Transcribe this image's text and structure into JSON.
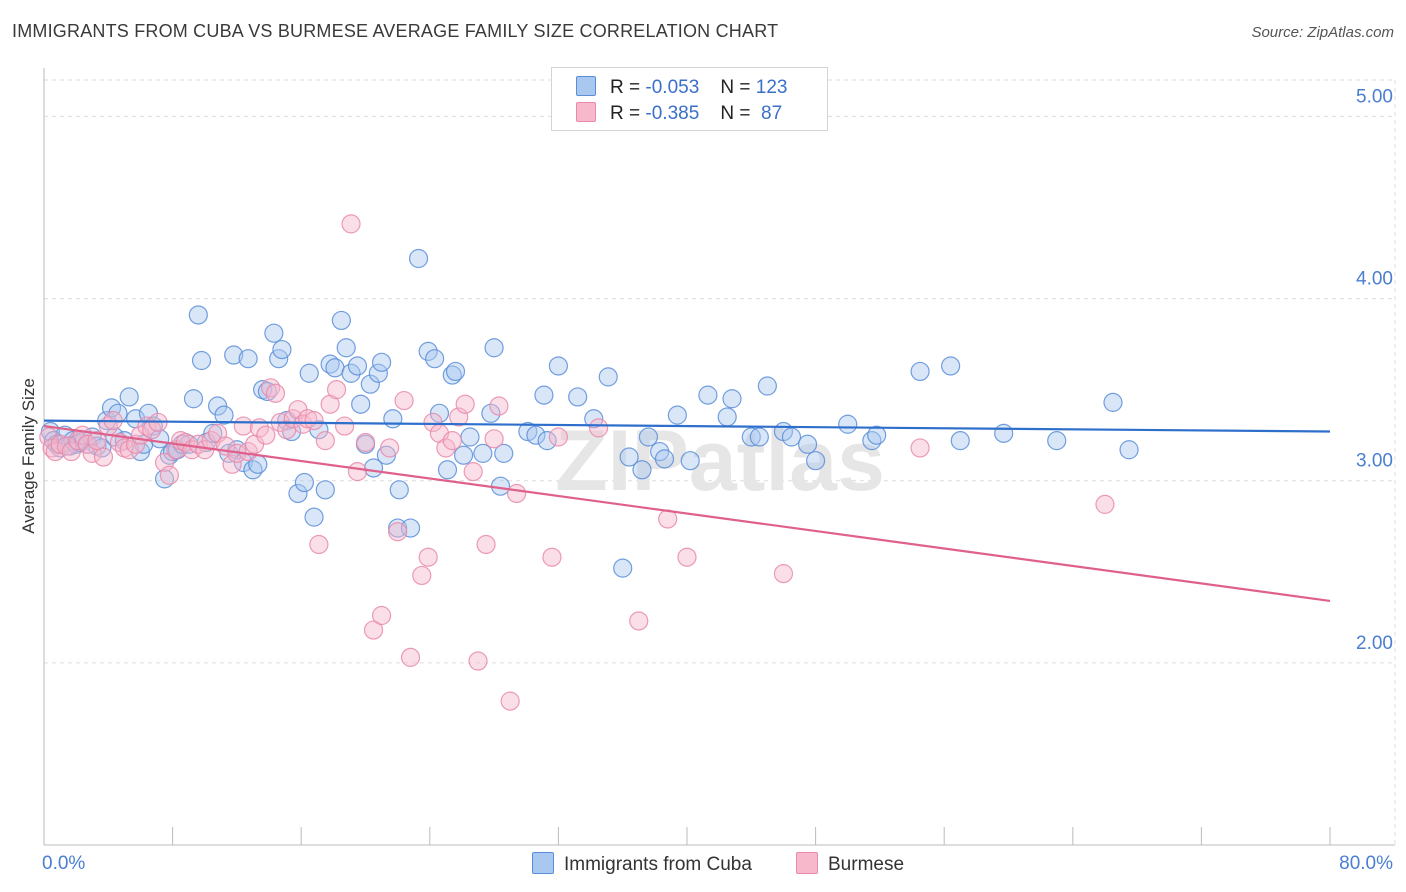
{
  "title": "IMMIGRANTS FROM CUBA VS BURMESE AVERAGE FAMILY SIZE CORRELATION CHART",
  "source": "Source: ZipAtlas.com",
  "watermark": "ZIPatlas",
  "legend_top": [
    {
      "r_label": "R =",
      "r_value": "-0.053",
      "n_label": "N =",
      "n_value": "123"
    },
    {
      "r_label": "R =",
      "r_value": "-0.385",
      "n_label": "N =",
      "n_value": " 87"
    }
  ],
  "legend_bottom": [
    "Immigrants from Cuba",
    "Burmese"
  ],
  "colors": {
    "cuba_fill": "#a8c8f0",
    "cuba_stroke": "#5b8ed8",
    "cuba_line": "#2f6fcc",
    "burmese_fill": "#f7b8cc",
    "burmese_stroke": "#e88aaa",
    "burmese_line": "#e0608c",
    "tick_text": "#4a7fd0"
  },
  "chart_data": {
    "type": "scatter",
    "ylabel": "Average Family Size",
    "xlabel": "",
    "xlim": [
      0,
      80
    ],
    "ylim": [
      1.0,
      5.2
    ],
    "x_tick_labels": [
      "0.0%",
      "80.0%"
    ],
    "y_ticks": [
      2.0,
      3.0,
      4.0,
      5.0
    ],
    "y_tick_labels": [
      "2.00",
      "3.00",
      "4.00",
      "5.00"
    ],
    "grid": true,
    "series": [
      {
        "name": "Immigrants from Cuba",
        "trend": {
          "x": [
            0,
            80
          ],
          "y": [
            3.33,
            3.27
          ]
        },
        "points": [
          [
            0.4,
            3.27
          ],
          [
            0.6,
            3.22
          ],
          [
            0.8,
            3.2
          ],
          [
            1,
            3.18
          ],
          [
            1.3,
            3.25
          ],
          [
            1.6,
            3.19
          ],
          [
            1.8,
            3.22
          ],
          [
            2,
            3.2
          ],
          [
            2.2,
            3.21
          ],
          [
            2.5,
            3.22
          ],
          [
            2.7,
            3.2
          ],
          [
            3,
            3.24
          ],
          [
            3.3,
            3.19
          ],
          [
            3.6,
            3.18
          ],
          [
            3.9,
            3.33
          ],
          [
            4.2,
            3.4
          ],
          [
            4.4,
            3.24
          ],
          [
            4.6,
            3.37
          ],
          [
            5,
            3.22
          ],
          [
            5.3,
            3.46
          ],
          [
            5.7,
            3.34
          ],
          [
            6,
            3.16
          ],
          [
            6.2,
            3.2
          ],
          [
            6.5,
            3.37
          ],
          [
            6.8,
            3.3
          ],
          [
            7.2,
            3.23
          ],
          [
            7.5,
            3.01
          ],
          [
            7.8,
            3.14
          ],
          [
            8,
            3.16
          ],
          [
            8.3,
            3.17
          ],
          [
            8.6,
            3.2
          ],
          [
            9,
            3.2
          ],
          [
            9.3,
            3.45
          ],
          [
            9.6,
            3.91
          ],
          [
            9.8,
            3.66
          ],
          [
            10.1,
            3.21
          ],
          [
            10.5,
            3.26
          ],
          [
            10.8,
            3.41
          ],
          [
            11.2,
            3.36
          ],
          [
            11.5,
            3.15
          ],
          [
            11.8,
            3.69
          ],
          [
            12,
            3.17
          ],
          [
            12.4,
            3.1
          ],
          [
            12.7,
            3.67
          ],
          [
            13,
            3.06
          ],
          [
            13.3,
            3.09
          ],
          [
            13.6,
            3.5
          ],
          [
            13.9,
            3.49
          ],
          [
            14.3,
            3.81
          ],
          [
            14.6,
            3.67
          ],
          [
            14.8,
            3.72
          ],
          [
            15.1,
            3.33
          ],
          [
            15.4,
            3.27
          ],
          [
            15.8,
            2.93
          ],
          [
            16.2,
            2.99
          ],
          [
            16.5,
            3.59
          ],
          [
            16.8,
            2.8
          ],
          [
            17.1,
            3.28
          ],
          [
            17.5,
            2.95
          ],
          [
            17.8,
            3.64
          ],
          [
            18.1,
            3.62
          ],
          [
            18.5,
            3.88
          ],
          [
            18.8,
            3.73
          ],
          [
            19.1,
            3.59
          ],
          [
            19.5,
            3.63
          ],
          [
            19.7,
            3.42
          ],
          [
            20,
            3.2
          ],
          [
            20.3,
            3.53
          ],
          [
            20.5,
            3.07
          ],
          [
            20.8,
            3.59
          ],
          [
            21,
            3.65
          ],
          [
            21.3,
            3.14
          ],
          [
            21.7,
            3.34
          ],
          [
            22.1,
            2.95
          ],
          [
            22,
            2.74
          ],
          [
            22.8,
            2.74
          ],
          [
            23.3,
            4.22
          ],
          [
            23.9,
            3.71
          ],
          [
            24.3,
            3.67
          ],
          [
            24.6,
            3.37
          ],
          [
            25.1,
            3.06
          ],
          [
            25.4,
            3.58
          ],
          [
            25.6,
            3.6
          ],
          [
            26.1,
            3.14
          ],
          [
            26.5,
            3.24
          ],
          [
            27.3,
            3.15
          ],
          [
            27.8,
            3.37
          ],
          [
            28,
            3.73
          ],
          [
            28.4,
            2.97
          ],
          [
            28.6,
            3.15
          ],
          [
            30.1,
            3.27
          ],
          [
            30.6,
            3.25
          ],
          [
            31.1,
            3.47
          ],
          [
            31.3,
            3.22
          ],
          [
            32,
            3.63
          ],
          [
            33.2,
            3.46
          ],
          [
            34.2,
            3.34
          ],
          [
            35.1,
            3.57
          ],
          [
            36,
            2.52
          ],
          [
            36.4,
            3.13
          ],
          [
            37.2,
            3.06
          ],
          [
            37.6,
            3.24
          ],
          [
            38.3,
            3.16
          ],
          [
            38.6,
            3.12
          ],
          [
            39.4,
            3.36
          ],
          [
            40.2,
            3.11
          ],
          [
            41.3,
            3.47
          ],
          [
            42.5,
            3.35
          ],
          [
            42.8,
            3.45
          ],
          [
            44,
            3.24
          ],
          [
            44.5,
            3.24
          ],
          [
            45,
            3.52
          ],
          [
            46,
            3.27
          ],
          [
            46.5,
            3.24
          ],
          [
            47.5,
            3.2
          ],
          [
            48,
            3.11
          ],
          [
            50,
            3.31
          ],
          [
            51.5,
            3.22
          ],
          [
            51.8,
            3.25
          ],
          [
            54.5,
            3.6
          ],
          [
            56.4,
            3.63
          ],
          [
            57,
            3.22
          ],
          [
            59.7,
            3.26
          ],
          [
            63,
            3.22
          ],
          [
            66.5,
            3.43
          ],
          [
            67.5,
            3.17
          ]
        ]
      },
      {
        "name": "Burmese",
        "trend": {
          "x": [
            0,
            80
          ],
          "y": [
            3.3,
            2.34
          ]
        },
        "points": [
          [
            0.3,
            3.24
          ],
          [
            0.5,
            3.18
          ],
          [
            0.7,
            3.16
          ],
          [
            1,
            3.2
          ],
          [
            1.4,
            3.19
          ],
          [
            1.7,
            3.16
          ],
          [
            2.1,
            3.22
          ],
          [
            2.4,
            3.25
          ],
          [
            2.7,
            3.2
          ],
          [
            3,
            3.15
          ],
          [
            3.3,
            3.22
          ],
          [
            3.7,
            3.13
          ],
          [
            4,
            3.3
          ],
          [
            4.3,
            3.33
          ],
          [
            4.7,
            3.21
          ],
          [
            5,
            3.18
          ],
          [
            5.3,
            3.17
          ],
          [
            5.7,
            3.2
          ],
          [
            6,
            3.25
          ],
          [
            6.4,
            3.3
          ],
          [
            6.7,
            3.28
          ],
          [
            7.1,
            3.32
          ],
          [
            7.5,
            3.1
          ],
          [
            7.8,
            3.03
          ],
          [
            8.2,
            3.17
          ],
          [
            8.5,
            3.22
          ],
          [
            8.8,
            3.21
          ],
          [
            9.2,
            3.17
          ],
          [
            9.6,
            3.2
          ],
          [
            10,
            3.17
          ],
          [
            10.4,
            3.22
          ],
          [
            10.8,
            3.26
          ],
          [
            11.3,
            3.19
          ],
          [
            11.7,
            3.09
          ],
          [
            12,
            3.15
          ],
          [
            12.4,
            3.3
          ],
          [
            12.7,
            3.16
          ],
          [
            13.1,
            3.2
          ],
          [
            13.4,
            3.29
          ],
          [
            13.8,
            3.25
          ],
          [
            14.1,
            3.51
          ],
          [
            14.4,
            3.48
          ],
          [
            14.7,
            3.32
          ],
          [
            15.1,
            3.28
          ],
          [
            15.5,
            3.34
          ],
          [
            15.8,
            3.39
          ],
          [
            16.1,
            3.31
          ],
          [
            16.4,
            3.34
          ],
          [
            16.8,
            3.33
          ],
          [
            17.1,
            2.65
          ],
          [
            17.5,
            3.22
          ],
          [
            17.8,
            3.42
          ],
          [
            18.2,
            3.5
          ],
          [
            18.7,
            3.3
          ],
          [
            19.1,
            4.41
          ],
          [
            19.5,
            3.05
          ],
          [
            20,
            3.21
          ],
          [
            20.5,
            2.18
          ],
          [
            21,
            2.26
          ],
          [
            21.5,
            3.18
          ],
          [
            22,
            2.72
          ],
          [
            22.4,
            3.44
          ],
          [
            22.8,
            2.03
          ],
          [
            23.5,
            2.48
          ],
          [
            23.9,
            2.58
          ],
          [
            24.2,
            3.32
          ],
          [
            24.6,
            3.26
          ],
          [
            25,
            3.18
          ],
          [
            25.4,
            3.22
          ],
          [
            25.8,
            3.35
          ],
          [
            26.2,
            3.42
          ],
          [
            26.7,
            3.05
          ],
          [
            27,
            2.01
          ],
          [
            27.5,
            2.65
          ],
          [
            28,
            3.23
          ],
          [
            28.3,
            3.41
          ],
          [
            29,
            1.79
          ],
          [
            29.4,
            2.93
          ],
          [
            31.6,
            2.58
          ],
          [
            32,
            3.24
          ],
          [
            34.5,
            3.29
          ],
          [
            37,
            2.23
          ],
          [
            38.8,
            2.79
          ],
          [
            40,
            2.58
          ],
          [
            46,
            2.49
          ],
          [
            54.5,
            3.18
          ],
          [
            66,
            2.87
          ]
        ]
      }
    ]
  }
}
